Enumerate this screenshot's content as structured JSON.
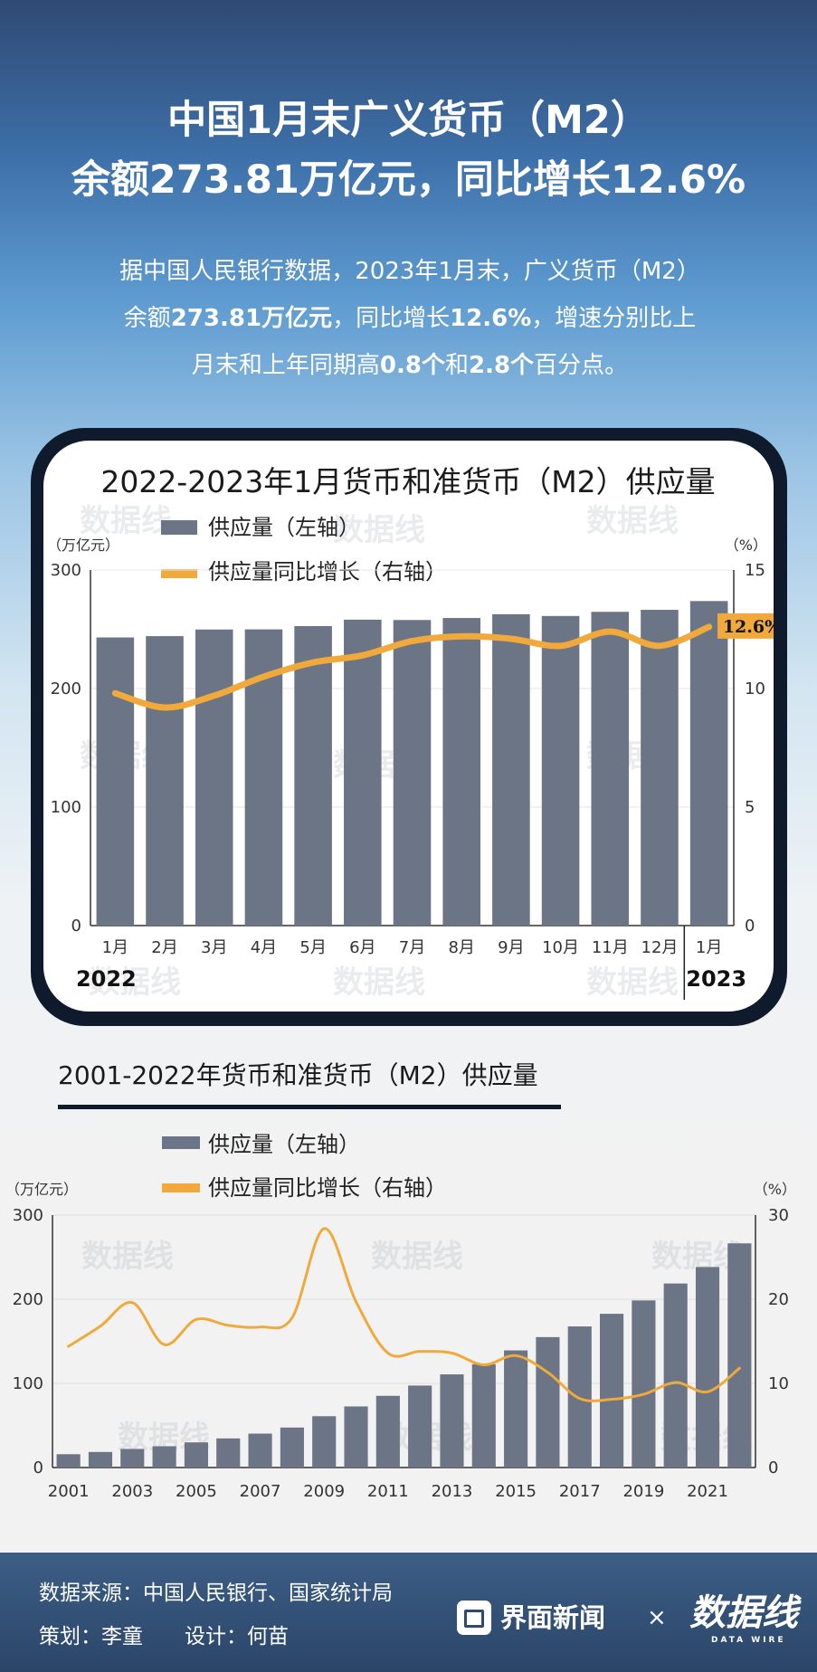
{
  "header": {
    "title_line1": "中国1月末广义货币（M2）",
    "title_line2": "余额273.81万亿元，同比增长12.6%",
    "intro_line1": "据中国人民银行数据，2023年1月末，广义货币（M2）",
    "intro_line2_a": "余额",
    "intro_line2_b": "273.81万亿元",
    "intro_line2_c": "，同比增长",
    "intro_line2_d": "12.6%",
    "intro_line2_e": "，增速分别比上",
    "intro_line3_a": "月末和上年同期高",
    "intro_line3_b": "0.8个",
    "intro_line3_c": "和",
    "intro_line3_d": "2.8个",
    "intro_line3_e": "百分点。"
  },
  "watermark": "数据线",
  "colors": {
    "bar": "#6b7585",
    "line": "#f0a93a",
    "card_border": "#0f1a2c",
    "footer": "#2f4b6f"
  },
  "chart_data": [
    {
      "type": "bar",
      "title": "2022-2023年1月货币和准货币（M2）供应量",
      "categories": [
        "1月",
        "2月",
        "3月",
        "4月",
        "5月",
        "6月",
        "7月",
        "8月",
        "9月",
        "10月",
        "11月",
        "12月",
        "1月"
      ],
      "year_labels": [
        "2022",
        "2023"
      ],
      "left_unit": "（万亿元）",
      "right_unit": "（%）",
      "ylim_left": [
        0,
        300
      ],
      "ylim_right": [
        0,
        15
      ],
      "yticks_left": [
        0,
        100,
        200,
        300
      ],
      "yticks_right": [
        0,
        5,
        10,
        15
      ],
      "series": [
        {
          "name": "供应量（左轴）",
          "type": "bar",
          "axis": "left",
          "values": [
            243.1,
            244.2,
            249.8,
            249.9,
            252.7,
            258.1,
            257.8,
            259.5,
            262.7,
            261.2,
            264.7,
            266.4,
            273.8
          ]
        },
        {
          "name": "供应量同比增长（右轴）",
          "type": "line",
          "axis": "right",
          "values": [
            9.8,
            9.2,
            9.7,
            10.5,
            11.1,
            11.4,
            12.0,
            12.2,
            12.1,
            11.8,
            12.4,
            11.8,
            12.6
          ]
        }
      ],
      "annotation": "12.6%"
    },
    {
      "type": "bar",
      "title": "2001-2022年货币和准货币（M2）供应量",
      "categories": [
        "2001",
        "2002",
        "2003",
        "2004",
        "2005",
        "2006",
        "2007",
        "2008",
        "2009",
        "2010",
        "2011",
        "2012",
        "2013",
        "2014",
        "2015",
        "2016",
        "2017",
        "2018",
        "2019",
        "2020",
        "2021",
        "2022"
      ],
      "xtick_labels": [
        "2001",
        "2003",
        "2005",
        "2007",
        "2009",
        "2011",
        "2013",
        "2015",
        "2017",
        "2019",
        "2021"
      ],
      "left_unit": "（万亿元）",
      "right_unit": "（%）",
      "ylim_left": [
        0,
        300
      ],
      "ylim_right": [
        0,
        30
      ],
      "yticks_left": [
        0,
        100,
        200,
        300
      ],
      "yticks_right": [
        0,
        10,
        20,
        30
      ],
      "series": [
        {
          "name": "供应量（左轴）",
          "type": "bar",
          "axis": "left",
          "values": [
            15.8,
            18.5,
            22.1,
            25.3,
            29.9,
            34.6,
            40.3,
            47.5,
            61.0,
            72.6,
            85.2,
            97.4,
            110.7,
            122.8,
            139.2,
            155.0,
            167.7,
            182.7,
            198.6,
            218.7,
            238.3,
            266.4
          ]
        },
        {
          "name": "供应量同比增长（右轴）",
          "type": "line",
          "axis": "right",
          "values": [
            14.4,
            16.8,
            19.6,
            14.6,
            17.6,
            16.9,
            16.7,
            17.8,
            28.4,
            19.7,
            13.6,
            13.8,
            13.6,
            12.2,
            13.3,
            11.3,
            8.2,
            8.1,
            8.7,
            10.1,
            9.0,
            11.8
          ]
        }
      ]
    }
  ],
  "footer": {
    "source": "数据来源：中国人民银行、国家统计局",
    "credits": "策划：李童　　设计：何苗",
    "logo1": "界面新闻",
    "times": "×",
    "logo2": "数据线",
    "logo2_sub": "DATA WIRE"
  }
}
